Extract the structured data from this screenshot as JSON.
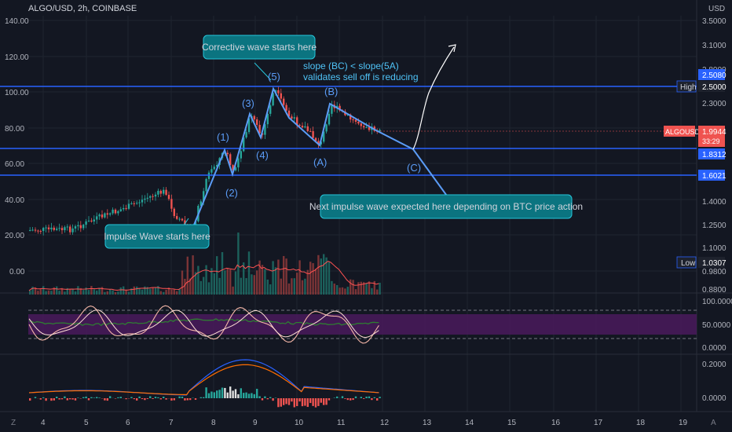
{
  "header": {
    "symbol_title": "ALGO/USD, 2h, COINBASE",
    "currency": "USD"
  },
  "colors": {
    "bg": "#131722",
    "grid": "#1f2430",
    "text": "#d1d4dc",
    "axis_text": "#b2b5be",
    "up": "#26a69a",
    "down": "#ef5350",
    "level_line": "#2962ff",
    "callout_bg": "#0b7480",
    "callout_border": "#26c6da",
    "wave_label": "#5b9cf6",
    "annotation_text": "#4fc3f7",
    "arrow": "#ffffff",
    "rsi_band": "#4a1a5c",
    "stoch_k": "#f5b7a8",
    "stoch_d": "#ffd6c8",
    "macd": "#2962ff",
    "signal": "#ff6d00",
    "volume_ma": "#ff5252"
  },
  "left_axis": {
    "labels": [
      "140.00",
      "120.00",
      "100.00",
      "80.00",
      "60.00",
      "40.00",
      "20.00",
      "0.00"
    ]
  },
  "right_axis": {
    "labels": [
      "3.5000",
      "3.1000",
      "2.8000",
      "2.3000",
      "1.4000",
      "1.2500",
      "1.1000",
      "0.9800",
      "0.8800"
    ],
    "price_tags": [
      {
        "label": "",
        "value": "2.5080"
      },
      {
        "label": "High",
        "value": "2.5000"
      },
      {
        "label": "ALGOUSD",
        "value": "1.9944",
        "sub": "33:29"
      },
      {
        "label": "",
        "value": "1.8312"
      },
      {
        "label": "",
        "value": "1.6021"
      },
      {
        "label": "Low",
        "value": "1.0307"
      }
    ]
  },
  "time_axis": {
    "labels": [
      "4",
      "5",
      "6",
      "7",
      "8",
      "9",
      "10",
      "11",
      "12",
      "13",
      "14",
      "15",
      "16",
      "17",
      "18",
      "19"
    ]
  },
  "waves": [
    "(1)",
    "(2)",
    "(3)",
    "(4)",
    "(5)",
    "(A)",
    "(B)",
    "(C)"
  ],
  "annotations": {
    "corrective": "Corrective wave starts here",
    "impulse": "Impulse Wave starts here",
    "next_impulse": "Next impulse wave expected here depending on BTC price action",
    "slope_line1": "slope (BC) < slope(5A)",
    "slope_line2": "validates sell off is reducing"
  },
  "oscillator_axis": [
    "100.0000",
    "50.0000",
    "0.0000"
  ],
  "macd_axis": [
    "0.2000",
    "0.0000"
  ],
  "corner_icons": {
    "left": "Z",
    "right": "A"
  }
}
